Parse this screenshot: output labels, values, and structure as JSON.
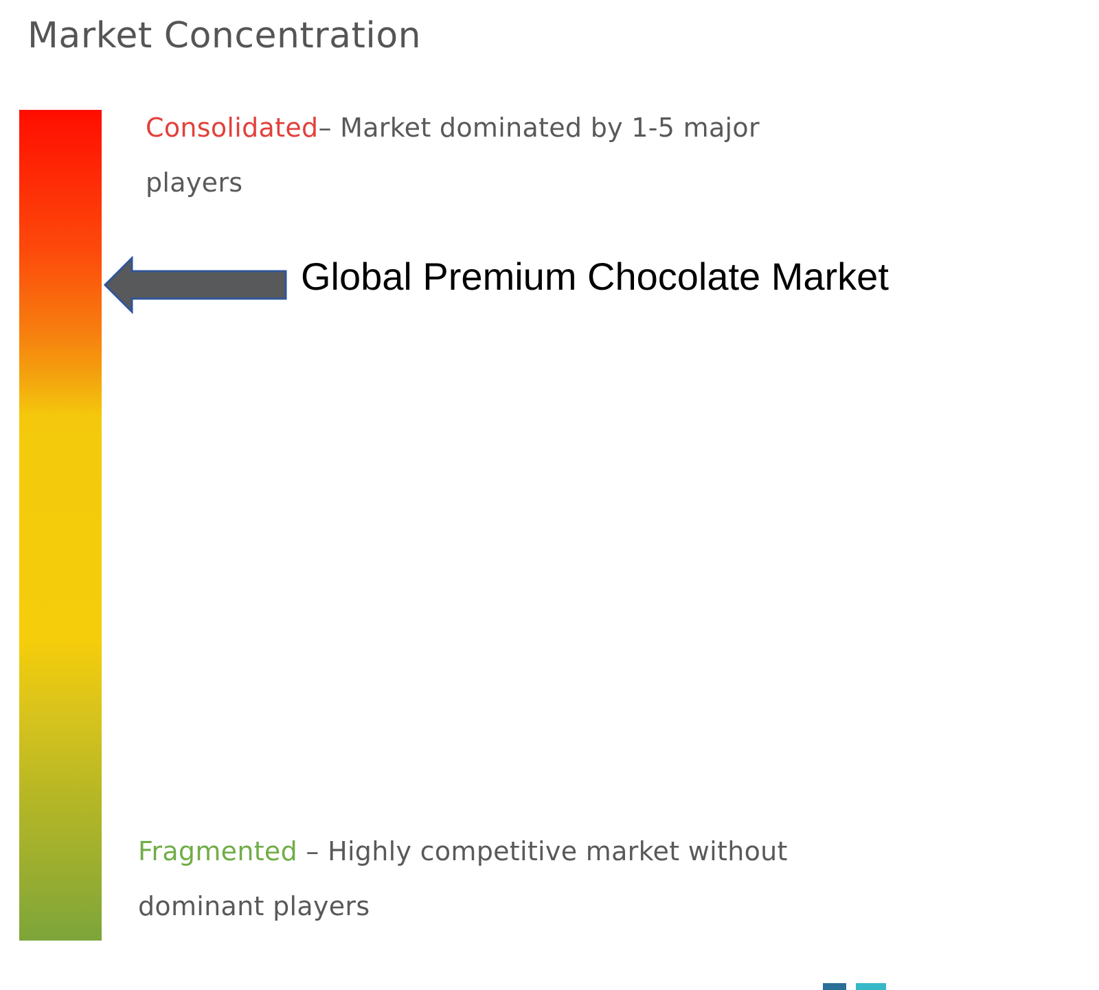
{
  "title": "Market Concentration",
  "scale": {
    "colors": {
      "top": "#ff0d00",
      "middle": "#f4cc0c",
      "bottom": "#7ca53a"
    }
  },
  "consolidated": {
    "keyword": "Consolidated",
    "description": "– Market dominated by 1-5 major players",
    "color": "#e2403c"
  },
  "fragmented": {
    "keyword": "Fragmented",
    "description": " – Highly competitive market without dominant players",
    "color": "#70ad47"
  },
  "indicator": {
    "market_name": "Global Premium Chocolate Market",
    "position_fraction_from_top": 0.2,
    "arrow_color": "#58595b"
  },
  "logo": {
    "icon": "mordor-intelligence-logo-icon"
  }
}
